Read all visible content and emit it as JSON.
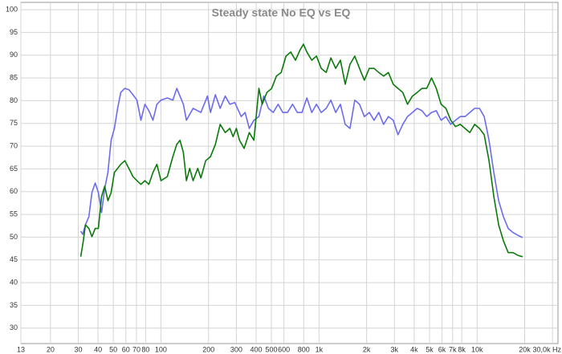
{
  "chart_data": {
    "type": "line",
    "title": "Steady state No EQ vs EQ",
    "xscale": "log",
    "grid": true,
    "xlim": [
      13,
      32500
    ],
    "ylim": [
      26.6,
      101.6
    ],
    "xticks": [
      13,
      20,
      30,
      40,
      50,
      60,
      70,
      80,
      100,
      200,
      300,
      400,
      500,
      600,
      800,
      {
        "value": 1000,
        "label": "1k"
      },
      {
        "value": 2000,
        "label": "2k"
      },
      {
        "value": 3000,
        "label": "3k"
      },
      {
        "value": 4000,
        "label": "4k"
      },
      {
        "value": 5000,
        "label": "5k"
      },
      {
        "value": 6000,
        "label": "6k"
      },
      {
        "value": 7000,
        "label": "7k"
      },
      {
        "value": 8000,
        "label": "8k"
      },
      {
        "value": 10000,
        "label": "10k"
      },
      {
        "value": 20000,
        "label": "20k"
      },
      {
        "value": 30000,
        "label": "30,0k Hz"
      }
    ],
    "yticks": [
      30,
      35,
      40,
      45,
      50,
      55,
      60,
      65,
      70,
      75,
      80,
      85,
      90,
      95,
      100
    ],
    "series": [
      {
        "color": "#6b6bf0",
        "x": [
          31.1,
          32,
          33.3,
          35,
          36.6,
          38.4,
          40.2,
          42.1,
          44.1,
          46.2,
          48.4,
          50.8,
          53.2,
          55.7,
          59.1,
          62.7,
          66.5,
          70.5,
          74.7,
          79.2,
          83.9,
          89,
          94.3,
          100,
          109.8,
          119,
          126,
          138.7,
          145,
          159.7,
          179,
          197,
          206,
          221,
          237,
          255,
          273,
          293,
          322,
          341,
          362,
          387,
          417,
          447,
          479,
          513,
          551,
          590,
          632,
          680,
          730,
          780,
          838,
          900,
          964,
          1033,
          1110,
          1188,
          1275,
          1366,
          1465,
          1570,
          1685,
          1805,
          1936,
          2080,
          2230,
          2390,
          2560,
          2750,
          2950,
          3160,
          3390,
          3630,
          3900,
          4180,
          4480,
          4800,
          5150,
          5520,
          5920,
          6350,
          6810,
          7300,
          7830,
          8390,
          9000,
          9650,
          10350,
          11100,
          11900,
          12770,
          13690,
          14680,
          15740,
          16880,
          18100,
          19400
        ],
        "values": [
          51.3,
          50.6,
          52.7,
          54.5,
          59.8,
          61.9,
          59.8,
          55.4,
          60.7,
          64.2,
          71.3,
          73.9,
          78.3,
          81.8,
          82.7,
          82.4,
          81.3,
          80.1,
          75.7,
          79.2,
          77.8,
          75.7,
          79.2,
          80.1,
          80.6,
          80.1,
          82.7,
          79.2,
          75.7,
          78.3,
          77.4,
          81,
          77.4,
          81.3,
          78.3,
          81,
          79.2,
          79.6,
          76.5,
          77.4,
          73.9,
          75.7,
          76.5,
          81,
          78.3,
          77.4,
          79.2,
          77.4,
          77.4,
          79.2,
          77.4,
          77.4,
          80.6,
          77.4,
          79.2,
          77.4,
          78.3,
          80.1,
          77.4,
          79.2,
          74.8,
          73.9,
          80.1,
          79.2,
          76.5,
          77.4,
          75.7,
          77.4,
          74.8,
          76.5,
          75.7,
          72.5,
          74.8,
          76.5,
          77.4,
          78.3,
          77.8,
          76.5,
          77.4,
          77.8,
          75.7,
          76.5,
          74.8,
          75.7,
          76.5,
          76.5,
          77.4,
          78.3,
          78.3,
          76.5,
          71.3,
          64.2,
          58,
          54.5,
          51.9,
          51,
          50.4,
          49.9
        ]
      },
      {
        "color": "#0a7a0a",
        "x": [
          31.1,
          32.3,
          33.3,
          35,
          36.6,
          38.4,
          40.2,
          42.1,
          44.1,
          46.2,
          48.4,
          50.8,
          53.2,
          55.7,
          59.1,
          62.7,
          66.5,
          70.5,
          74.7,
          79.2,
          83.9,
          89,
          94.3,
          100,
          109.8,
          119,
          126,
          132,
          138.7,
          145,
          152,
          159.7,
          171,
          179,
          192,
          206,
          221,
          237,
          255,
          273,
          286,
          300,
          314,
          336,
          362,
          387,
          417,
          437,
          468,
          502,
          538,
          576,
          618,
          662,
          710,
          760,
          798,
          838,
          900,
          964,
          1033,
          1110,
          1188,
          1275,
          1366,
          1465,
          1570,
          1685,
          1805,
          1936,
          2080,
          2230,
          2390,
          2560,
          2750,
          2950,
          3160,
          3390,
          3630,
          3900,
          4180,
          4480,
          4800,
          5150,
          5520,
          5920,
          6350,
          6810,
          7300,
          7830,
          8390,
          9000,
          9650,
          10350,
          11100,
          11900,
          12770,
          13690,
          14680,
          15740,
          16880,
          18100,
          19400
        ],
        "values": [
          45.7,
          49.2,
          52.7,
          51.9,
          50.1,
          51.9,
          51.9,
          58.9,
          61.2,
          58,
          59.8,
          64.2,
          65.1,
          66,
          66.8,
          65.1,
          63.3,
          62.4,
          61.6,
          62.4,
          61.6,
          64.2,
          66,
          62.4,
          63.3,
          67.7,
          70.4,
          71.3,
          68.6,
          62.4,
          65.1,
          62.4,
          65.1,
          63,
          66.8,
          67.7,
          70.4,
          74.8,
          73,
          73.9,
          72.1,
          73.9,
          71.3,
          69.5,
          73,
          71.3,
          82.7,
          79.2,
          81.8,
          82.7,
          85.4,
          86.2,
          89.8,
          90.7,
          88.9,
          91.2,
          92.4,
          90.7,
          88.9,
          89.8,
          87.1,
          86.2,
          89.4,
          87.1,
          88.9,
          83.6,
          88,
          89.8,
          87.1,
          84.5,
          87.1,
          87.1,
          86.2,
          85.4,
          86.2,
          83.6,
          82.7,
          81.8,
          79.2,
          81,
          81.8,
          82.7,
          82.7,
          85,
          82.7,
          79.2,
          78.3,
          75.7,
          74.3,
          74.8,
          73.9,
          73,
          74.8,
          73.9,
          72.5,
          66.8,
          58.9,
          52.7,
          49.2,
          46.6,
          46.6,
          46,
          45.7
        ]
      }
    ]
  }
}
